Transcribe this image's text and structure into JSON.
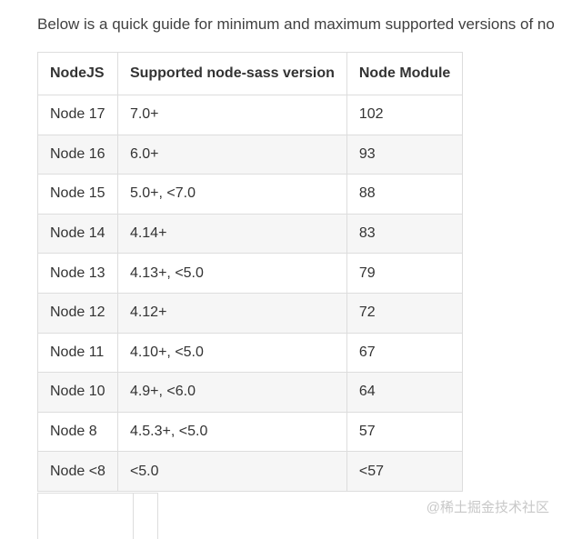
{
  "intro_text": "Below is a quick guide for minimum and maximum supported versions of no",
  "table": {
    "headers": {
      "node": "NodeJS",
      "sass": "Supported node-sass version",
      "module": "Node Module"
    },
    "rows": [
      {
        "node": "Node 17",
        "sass": "7.0+",
        "module": "102"
      },
      {
        "node": "Node 16",
        "sass": "6.0+",
        "module": "93"
      },
      {
        "node": "Node 15",
        "sass": "5.0+, <7.0",
        "module": "88"
      },
      {
        "node": "Node 14",
        "sass": "4.14+",
        "module": "83"
      },
      {
        "node": "Node 13",
        "sass": "4.13+, <5.0",
        "module": "79"
      },
      {
        "node": "Node 12",
        "sass": "4.12+",
        "module": "72"
      },
      {
        "node": "Node 11",
        "sass": "4.10+, <5.0",
        "module": "67"
      },
      {
        "node": "Node 10",
        "sass": "4.9+, <6.0",
        "module": "64"
      },
      {
        "node": "Node 8",
        "sass": "4.5.3+, <5.0",
        "module": "57"
      },
      {
        "node": "Node <8",
        "sass": "<5.0",
        "module": "<57"
      }
    ]
  },
  "watermark": "@稀土掘金技术社区"
}
